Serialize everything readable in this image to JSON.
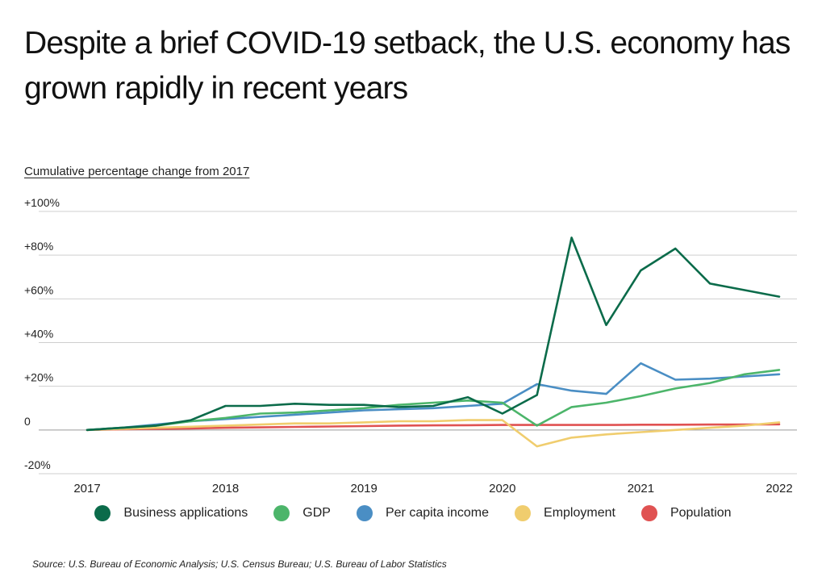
{
  "title": "Despite a brief COVID-19 setback, the U.S. economy has grown rapidly in recent years",
  "subtitle": "Cumulative percentage change from 2017",
  "source": "Source:  U.S. Bureau of Economic Analysis; U.S. Census Bureau; U.S. Bureau of Labor Statistics",
  "chart_data": {
    "type": "line",
    "title": "Despite a brief COVID-19 setback, the U.S. economy has grown rapidly in recent years",
    "ylabel": "Cumulative percentage change from 2017",
    "xlim": [
      2017,
      2022
    ],
    "ylim": [
      -20,
      100
    ],
    "x_ticks": [
      2017,
      2018,
      2019,
      2020,
      2021,
      2022
    ],
    "x_tick_labels": [
      "2017",
      "2018",
      "2019",
      "2020",
      "2021",
      "2022"
    ],
    "y_ticks": [
      -20,
      0,
      20,
      40,
      60,
      80,
      100
    ],
    "y_tick_labels": [
      "-20%",
      "0",
      "+20%",
      "+40%",
      "+60%",
      "+80%",
      "+100%"
    ],
    "grid": true,
    "legend_position": "bottom",
    "x": [
      2017,
      2017.25,
      2017.5,
      2017.75,
      2018,
      2018.25,
      2018.5,
      2018.75,
      2019,
      2019.25,
      2019.5,
      2019.75,
      2020,
      2020.25,
      2020.5,
      2020.75,
      2021,
      2021.25,
      2021.5,
      2021.75,
      2022
    ],
    "series": [
      {
        "name": "Business applications",
        "color": "#0b6b4a",
        "values": [
          0,
          1,
          2,
          4.5,
          11,
          11,
          12,
          11.5,
          11.5,
          10.5,
          11,
          15,
          7.5,
          16,
          88,
          48,
          73,
          83,
          67,
          64,
          61
        ]
      },
      {
        "name": "GDP",
        "color": "#4cb56a",
        "values": [
          0,
          1,
          2,
          4,
          5.5,
          7.5,
          8,
          9,
          10,
          11.5,
          12.5,
          13.5,
          12.5,
          2,
          10.5,
          12.5,
          15.5,
          19,
          21.5,
          25.5,
          27.5
        ]
      },
      {
        "name": "Per capita income",
        "color": "#4a8ec4",
        "values": [
          0,
          1,
          2.5,
          4,
          5,
          6,
          7,
          8,
          9,
          9.5,
          10,
          11,
          12,
          21,
          18,
          16.5,
          30.5,
          23,
          23.5,
          24.5,
          25.5
        ]
      },
      {
        "name": "Employment",
        "color": "#f0cd6e",
        "values": [
          0,
          0.5,
          1,
          1.5,
          2,
          2.5,
          3,
          3,
          3.5,
          4,
          4,
          4.5,
          4.5,
          -7.5,
          -3.5,
          -2,
          -1,
          0,
          1,
          2,
          3.5
        ]
      },
      {
        "name": "Population",
        "color": "#e05252",
        "values": [
          0,
          0.3,
          0.5,
          0.7,
          1,
          1.2,
          1.4,
          1.6,
          1.8,
          2,
          2.1,
          2.2,
          2.3,
          2.3,
          2.3,
          2.3,
          2.4,
          2.4,
          2.5,
          2.5,
          2.6
        ]
      }
    ]
  }
}
